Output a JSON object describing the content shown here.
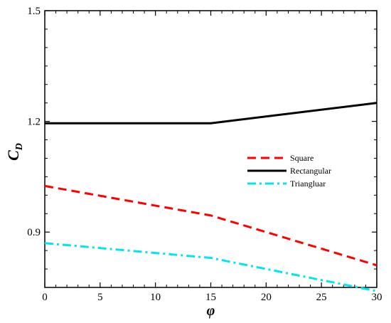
{
  "chart_data": {
    "type": "line",
    "title": "",
    "xlabel": "φ",
    "ylabel": "C",
    "ylabel_subscript": "D",
    "xlim": [
      0,
      30
    ],
    "ylim": [
      0.75,
      1.5
    ],
    "x_ticks": [
      0,
      5,
      10,
      15,
      20,
      25,
      30
    ],
    "y_ticks": [
      0.9,
      1.2,
      1.5
    ],
    "grid": false,
    "legend_position": "right-center",
    "x": [
      0,
      15,
      30
    ],
    "series": [
      {
        "name": "Square",
        "values": [
          1.025,
          0.945,
          0.81
        ],
        "color": "#ff0000",
        "dash": "dashed"
      },
      {
        "name": "Rectangular",
        "values": [
          1.195,
          1.195,
          1.25
        ],
        "color": "#000000",
        "dash": "solid"
      },
      {
        "name": "Triangluar",
        "values": [
          0.87,
          0.83,
          0.74
        ],
        "color": "#00e5ee",
        "dash": "dashdot"
      }
    ]
  }
}
